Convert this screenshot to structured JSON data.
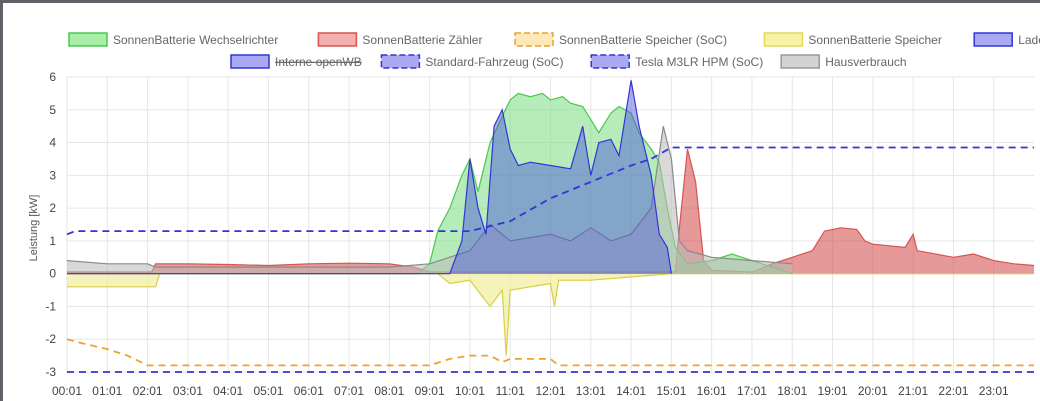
{
  "chart_data": {
    "type": "area",
    "ylabel": "Leistung [kW]",
    "ylim": [
      -3,
      6
    ],
    "yticks": [
      -3,
      -2,
      -1,
      0,
      1,
      2,
      3,
      4,
      5,
      6
    ],
    "xlim": [
      0,
      24
    ],
    "xticks": [
      "00:01",
      "01:01",
      "02:01",
      "03:01",
      "04:01",
      "05:01",
      "06:01",
      "07:01",
      "08:01",
      "09:01",
      "10:01",
      "11:01",
      "12:01",
      "13:01",
      "14:01",
      "15:01",
      "16:01",
      "17:01",
      "18:01",
      "19:01",
      "20:01",
      "21:01",
      "22:01",
      "23:01"
    ],
    "grid": true,
    "legend_position": "top",
    "legend": [
      {
        "name": "SonnenBatterie Wechselrichter",
        "color": "#49c94d",
        "fill": "#a7eea8",
        "dashed": false,
        "hidden": false
      },
      {
        "name": "SonnenBatterie Zähler",
        "color": "#d9534f",
        "fill": "#f2b0ae",
        "dashed": false,
        "hidden": false
      },
      {
        "name": "SonnenBatterie Speicher (SoC)",
        "color": "#f0a030",
        "fill": "#fde9b8",
        "dashed": true,
        "hidden": false
      },
      {
        "name": "SonnenBatterie Speicher",
        "color": "#e3d95a",
        "fill": "#f7f2a6",
        "dashed": false,
        "hidden": false
      },
      {
        "name": "Ladepunkte (Summe)",
        "color": "#3434d6",
        "fill": "#a9a9f2",
        "dashed": false,
        "hidden": false
      },
      {
        "name": "Interne openWB",
        "color": "#3434d6",
        "fill": "#a9a9f2",
        "dashed": false,
        "hidden": true
      },
      {
        "name": "Standard-Fahrzeug (SoC)",
        "color": "#3434d6",
        "fill": "#a9a9f2",
        "dashed": true,
        "hidden": false
      },
      {
        "name": "Tesla M3LR HPM (SoC)",
        "color": "#3434d6",
        "fill": "#a9a9f2",
        "dashed": true,
        "hidden": false
      },
      {
        "name": "Hausverbrauch",
        "color": "#9a9a9a",
        "fill": "#d3d3d3",
        "dashed": false,
        "hidden": false
      }
    ],
    "series": [
      {
        "name": "SonnenBatterie Zähler",
        "color": "#d9534f",
        "fill": "rgba(210,70,70,0.55)",
        "dashed": false,
        "points": [
          [
            0,
            0.05
          ],
          [
            2.1,
            0.05
          ],
          [
            2.2,
            0.3
          ],
          [
            3,
            0.3
          ],
          [
            4,
            0.28
          ],
          [
            5,
            0.25
          ],
          [
            6,
            0.3
          ],
          [
            7,
            0.32
          ],
          [
            8,
            0.3
          ],
          [
            8.6,
            0.2
          ],
          [
            9,
            0.05
          ],
          [
            15.1,
            0.05
          ],
          [
            15.2,
            1.4
          ],
          [
            15.4,
            3.8
          ],
          [
            15.6,
            2.8
          ],
          [
            15.8,
            0.4
          ],
          [
            16,
            0.1
          ],
          [
            17,
            0.05
          ],
          [
            17.5,
            0.3
          ],
          [
            18,
            0.5
          ],
          [
            18.5,
            0.7
          ],
          [
            18.8,
            1.3
          ],
          [
            19.2,
            1.4
          ],
          [
            19.6,
            1.35
          ],
          [
            19.8,
            1.0
          ],
          [
            20,
            0.9
          ],
          [
            20.8,
            0.8
          ],
          [
            21,
            1.2
          ],
          [
            21.1,
            0.7
          ],
          [
            22,
            0.5
          ],
          [
            22.5,
            0.6
          ],
          [
            23,
            0.4
          ],
          [
            23.5,
            0.3
          ],
          [
            24,
            0.25
          ]
        ]
      },
      {
        "name": "SonnenBatterie Speicher",
        "color": "#d8cf45",
        "fill": "rgba(240,235,140,0.6)",
        "dashed": false,
        "points": [
          [
            0,
            -0.4
          ],
          [
            2.2,
            -0.4
          ],
          [
            2.3,
            0
          ],
          [
            9.2,
            0
          ],
          [
            9.5,
            -0.3
          ],
          [
            10,
            -0.2
          ],
          [
            10.5,
            -1
          ],
          [
            10.8,
            -0.5
          ],
          [
            10.9,
            -2.5
          ],
          [
            11.0,
            -0.5
          ],
          [
            11.5,
            -0.4
          ],
          [
            12.0,
            -0.3
          ],
          [
            12.1,
            -1
          ],
          [
            12.2,
            -0.2
          ],
          [
            13,
            -0.2
          ],
          [
            14,
            -0.1
          ],
          [
            15,
            0
          ],
          [
            24,
            0
          ]
        ]
      },
      {
        "name": "SonnenBatterie Wechselrichter",
        "color": "#49c94d",
        "fill": "rgba(120,220,130,0.55)",
        "dashed": false,
        "points": [
          [
            0,
            0
          ],
          [
            8.7,
            0
          ],
          [
            9.0,
            0.3
          ],
          [
            9.2,
            1.3
          ],
          [
            9.5,
            2.0
          ],
          [
            9.8,
            3.0
          ],
          [
            10.0,
            3.5
          ],
          [
            10.2,
            2.5
          ],
          [
            10.5,
            4.0
          ],
          [
            10.8,
            4.8
          ],
          [
            11.0,
            5.3
          ],
          [
            11.2,
            5.5
          ],
          [
            11.5,
            5.4
          ],
          [
            11.8,
            5.5
          ],
          [
            12.0,
            5.3
          ],
          [
            12.3,
            5.4
          ],
          [
            12.5,
            5.2
          ],
          [
            12.8,
            5.1
          ],
          [
            13.0,
            4.7
          ],
          [
            13.2,
            4.3
          ],
          [
            13.5,
            4.9
          ],
          [
            13.7,
            5.1
          ],
          [
            14.0,
            4.9
          ],
          [
            14.2,
            4.3
          ],
          [
            14.5,
            3.8
          ],
          [
            14.7,
            3.4
          ],
          [
            14.9,
            2.0
          ],
          [
            15.1,
            0.8
          ],
          [
            15.4,
            0.3
          ],
          [
            16,
            0.4
          ],
          [
            16.5,
            0.6
          ],
          [
            17,
            0.4
          ],
          [
            17.5,
            0.2
          ],
          [
            18,
            0
          ]
        ]
      },
      {
        "name": "Hausverbrauch",
        "color": "#8a8a8a",
        "fill": "rgba(185,185,185,0.55)",
        "dashed": false,
        "points": [
          [
            0,
            0.4
          ],
          [
            1,
            0.3
          ],
          [
            2,
            0.3
          ],
          [
            2.2,
            0.2
          ],
          [
            3,
            0.2
          ],
          [
            8,
            0.2
          ],
          [
            9,
            0.3
          ],
          [
            10,
            0.7
          ],
          [
            10.5,
            1.5
          ],
          [
            11,
            1.0
          ],
          [
            11.5,
            1.1
          ],
          [
            12,
            1.2
          ],
          [
            12.5,
            1.0
          ],
          [
            13,
            1.4
          ],
          [
            13.5,
            1.0
          ],
          [
            14,
            1.2
          ],
          [
            14.5,
            2.0
          ],
          [
            14.8,
            4.5
          ],
          [
            15.0,
            3.5
          ],
          [
            15.2,
            1.0
          ],
          [
            15.4,
            0.7
          ],
          [
            16,
            0.5
          ],
          [
            17,
            0.4
          ],
          [
            17.5,
            0.35
          ],
          [
            18,
            0.3
          ]
        ]
      },
      {
        "name": "Ladepunkte (Summe)",
        "color": "#3434d6",
        "fill": "rgba(70,80,220,0.45)",
        "dashed": false,
        "points": [
          [
            0,
            0
          ],
          [
            9.5,
            0
          ],
          [
            9.8,
            1.0
          ],
          [
            10.0,
            3.5
          ],
          [
            10.2,
            2.0
          ],
          [
            10.4,
            1.2
          ],
          [
            10.6,
            4.5
          ],
          [
            10.8,
            5.0
          ],
          [
            11.0,
            3.8
          ],
          [
            11.2,
            3.3
          ],
          [
            11.5,
            3.4
          ],
          [
            12.0,
            3.3
          ],
          [
            12.5,
            3.2
          ],
          [
            12.8,
            4.5
          ],
          [
            13.0,
            3.0
          ],
          [
            13.2,
            4.0
          ],
          [
            13.5,
            4.1
          ],
          [
            13.7,
            3.6
          ],
          [
            14.0,
            5.9
          ],
          [
            14.2,
            4.5
          ],
          [
            14.5,
            3.0
          ],
          [
            14.7,
            1.2
          ],
          [
            14.9,
            0.8
          ],
          [
            15.0,
            0
          ]
        ]
      },
      {
        "name": "Standard-Fahrzeug (SoC)",
        "color": "#3434d6",
        "fill": "none",
        "dashed": true,
        "points": [
          [
            0,
            1.2
          ],
          [
            0.2,
            1.3
          ],
          [
            9.5,
            1.3
          ],
          [
            10,
            1.3
          ],
          [
            11,
            1.6
          ],
          [
            12,
            2.3
          ],
          [
            13,
            2.8
          ],
          [
            14,
            3.3
          ],
          [
            14.5,
            3.5
          ],
          [
            15,
            3.85
          ],
          [
            24,
            3.85
          ]
        ]
      },
      {
        "name": "Tesla M3LR HPM (SoC)",
        "color": "#3434d6",
        "fill": "none",
        "dashed": true,
        "points": [
          [
            0,
            -3
          ],
          [
            24,
            -3
          ]
        ]
      },
      {
        "name": "SonnenBatterie Speicher (SoC)",
        "color": "#f0a030",
        "fill": "none",
        "dashed": true,
        "points": [
          [
            0,
            -2
          ],
          [
            0.3,
            -2.1
          ],
          [
            1,
            -2.3
          ],
          [
            1.5,
            -2.5
          ],
          [
            2,
            -2.8
          ],
          [
            9,
            -2.8
          ],
          [
            9.5,
            -2.6
          ],
          [
            10,
            -2.5
          ],
          [
            10.5,
            -2.5
          ],
          [
            10.8,
            -2.7
          ],
          [
            11,
            -2.6
          ],
          [
            12,
            -2.6
          ],
          [
            12.2,
            -2.8
          ],
          [
            24,
            -2.8
          ]
        ]
      }
    ]
  }
}
